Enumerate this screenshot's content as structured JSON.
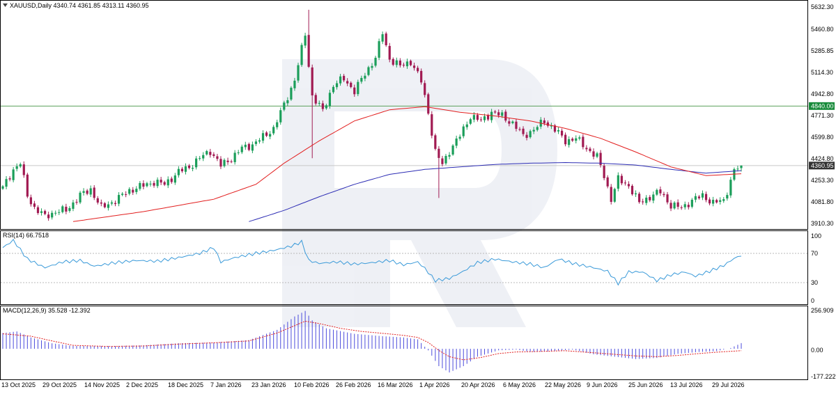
{
  "header": {
    "title": "XAUUSD,Daily  4340.74 4361.85 4313.11 4360.95",
    "collapse_icon": "triangle-down-icon"
  },
  "watermark": {
    "icon": "r-logo-watermark"
  },
  "colors": {
    "bull": "#1b9e5a",
    "bear": "#a11a52",
    "ma_fast": "#e21e1e",
    "ma_slow": "#2c2cb4",
    "level_line": "#5aa05a",
    "level_label_bg": "#178a3a",
    "price_label_bg": "#333333",
    "rsi_line": "#3a9ad9",
    "macd_hist": "#4b4bdc",
    "macd_signal": "#e21e1e",
    "grid": "#b8b8b8"
  },
  "price_panel": {
    "y_ticks": [
      "5632.30",
      "5460.80",
      "5285.85",
      "5114.30",
      "4942.80",
      "4771.30",
      "4599.80",
      "4424.80",
      "4253.30",
      "4081.80",
      "3910.30"
    ],
    "level_label": "4840.00",
    "last_price_label": "4360.95"
  },
  "rsi_panel": {
    "title": "RSI(14) 66.7518",
    "y_ticks": [
      "100",
      "70",
      "30",
      "0"
    ]
  },
  "macd_panel": {
    "title": "MACD(12,26,9) 35.528 -12.392",
    "y_ticks": [
      "256.909",
      "0.00",
      "-177.222"
    ]
  },
  "x_axis": {
    "labels": [
      "13 Oct 2025",
      "29 Oct 2025",
      "14 Nov 2025",
      "2 Dec 2025",
      "18 Dec 2025",
      "7 Jan 2026",
      "23 Jan 2026",
      "10 Feb 2026",
      "26 Feb 2026",
      "16 Mar 2026",
      "1 Apr 2026",
      "20 Apr 2026",
      "6 May 2026",
      "22 May 2026",
      "9 Jun 2026",
      "25 Jun 2026",
      "13 Jul 2026",
      "29 Jul 2026"
    ]
  },
  "chart_data": {
    "type": "candlestick",
    "symbol": "XAUUSD",
    "timeframe": "Daily",
    "last_ohlc": {
      "open": 4340.74,
      "high": 4361.85,
      "low": 4313.11,
      "close": 4360.95
    },
    "horizontal_level": 4840.0,
    "price_ylim": [
      3850,
      5660
    ],
    "close_anchors": [
      [
        0,
        4180
      ],
      [
        3,
        4330
      ],
      [
        5,
        4380
      ],
      [
        7,
        4120
      ],
      [
        9,
        4020
      ],
      [
        12,
        3950
      ],
      [
        15,
        3990
      ],
      [
        18,
        4000
      ],
      [
        22,
        4120
      ],
      [
        25,
        4170
      ],
      [
        28,
        4020
      ],
      [
        32,
        4080
      ],
      [
        36,
        4160
      ],
      [
        40,
        4200
      ],
      [
        43,
        4230
      ],
      [
        46,
        4210
      ],
      [
        50,
        4310
      ],
      [
        53,
        4350
      ],
      [
        56,
        4420
      ],
      [
        59,
        4480
      ],
      [
        62,
        4360
      ],
      [
        65,
        4420
      ],
      [
        68,
        4500
      ],
      [
        71,
        4530
      ],
      [
        74,
        4590
      ],
      [
        77,
        4660
      ],
      [
        80,
        4850
      ],
      [
        83,
        5050
      ],
      [
        86,
        5420
      ],
      [
        88,
        4920
      ],
      [
        91,
        4800
      ],
      [
        94,
        5010
      ],
      [
        97,
        5060
      ],
      [
        100,
        4960
      ],
      [
        103,
        5100
      ],
      [
        106,
        5230
      ],
      [
        108,
        5430
      ],
      [
        110,
        5220
      ],
      [
        113,
        5160
      ],
      [
        116,
        5200
      ],
      [
        119,
        5040
      ],
      [
        121,
        4790
      ],
      [
        123,
        4470
      ],
      [
        125,
        4370
      ],
      [
        127,
        4480
      ],
      [
        130,
        4600
      ],
      [
        133,
        4760
      ],
      [
        136,
        4720
      ],
      [
        139,
        4790
      ],
      [
        142,
        4760
      ],
      [
        145,
        4700
      ],
      [
        148,
        4600
      ],
      [
        151,
        4650
      ],
      [
        154,
        4720
      ],
      [
        157,
        4650
      ],
      [
        160,
        4560
      ],
      [
        163,
        4580
      ],
      [
        166,
        4500
      ],
      [
        169,
        4430
      ],
      [
        171,
        4280
      ],
      [
        173,
        4090
      ],
      [
        175,
        4250
      ],
      [
        178,
        4200
      ],
      [
        181,
        4060
      ],
      [
        184,
        4110
      ],
      [
        187,
        4150
      ],
      [
        190,
        4040
      ],
      [
        193,
        4020
      ],
      [
        196,
        4080
      ],
      [
        199,
        4120
      ],
      [
        202,
        4060
      ],
      [
        205,
        4080
      ],
      [
        208,
        4320
      ],
      [
        210,
        4361
      ]
    ],
    "ma_fast_anchors": [
      [
        20,
        3910
      ],
      [
        40,
        3990
      ],
      [
        60,
        4090
      ],
      [
        72,
        4210
      ],
      [
        80,
        4380
      ],
      [
        90,
        4560
      ],
      [
        100,
        4720
      ],
      [
        110,
        4810
      ],
      [
        120,
        4835
      ],
      [
        130,
        4790
      ],
      [
        140,
        4760
      ],
      [
        150,
        4720
      ],
      [
        160,
        4660
      ],
      [
        170,
        4580
      ],
      [
        180,
        4470
      ],
      [
        190,
        4350
      ],
      [
        200,
        4280
      ],
      [
        210,
        4295
      ]
    ],
    "ma_slow_anchors": [
      [
        70,
        3910
      ],
      [
        80,
        4000
      ],
      [
        90,
        4110
      ],
      [
        100,
        4210
      ],
      [
        110,
        4290
      ],
      [
        120,
        4330
      ],
      [
        130,
        4350
      ],
      [
        140,
        4370
      ],
      [
        150,
        4380
      ],
      [
        160,
        4385
      ],
      [
        170,
        4380
      ],
      [
        180,
        4365
      ],
      [
        190,
        4330
      ],
      [
        200,
        4300
      ],
      [
        210,
        4320
      ]
    ],
    "rsi_anchors": [
      [
        0,
        78
      ],
      [
        3,
        88
      ],
      [
        7,
        62
      ],
      [
        12,
        50
      ],
      [
        17,
        58
      ],
      [
        22,
        60
      ],
      [
        26,
        52
      ],
      [
        32,
        57
      ],
      [
        38,
        60
      ],
      [
        44,
        59
      ],
      [
        50,
        64
      ],
      [
        56,
        70
      ],
      [
        60,
        78
      ],
      [
        62,
        58
      ],
      [
        66,
        64
      ],
      [
        72,
        70
      ],
      [
        77,
        74
      ],
      [
        82,
        80
      ],
      [
        85,
        86
      ],
      [
        87,
        60
      ],
      [
        90,
        56
      ],
      [
        95,
        58
      ],
      [
        100,
        55
      ],
      [
        105,
        57
      ],
      [
        110,
        60
      ],
      [
        114,
        54
      ],
      [
        118,
        58
      ],
      [
        120,
        49
      ],
      [
        123,
        32
      ],
      [
        127,
        35
      ],
      [
        131,
        45
      ],
      [
        135,
        57
      ],
      [
        140,
        62
      ],
      [
        145,
        58
      ],
      [
        150,
        55
      ],
      [
        154,
        50
      ],
      [
        158,
        62
      ],
      [
        163,
        55
      ],
      [
        168,
        50
      ],
      [
        172,
        45
      ],
      [
        175,
        28
      ],
      [
        178,
        44
      ],
      [
        182,
        44
      ],
      [
        186,
        32
      ],
      [
        190,
        40
      ],
      [
        194,
        44
      ],
      [
        197,
        38
      ],
      [
        201,
        45
      ],
      [
        205,
        53
      ],
      [
        208,
        63
      ],
      [
        210,
        67
      ]
    ],
    "macd_hist_anchors": [
      [
        0,
        100
      ],
      [
        4,
        110
      ],
      [
        8,
        72
      ],
      [
        14,
        35
      ],
      [
        20,
        18
      ],
      [
        30,
        17
      ],
      [
        40,
        22
      ],
      [
        50,
        35
      ],
      [
        60,
        40
      ],
      [
        70,
        55
      ],
      [
        78,
        120
      ],
      [
        83,
        205
      ],
      [
        86,
        240
      ],
      [
        88,
        180
      ],
      [
        92,
        130
      ],
      [
        100,
        95
      ],
      [
        108,
        80
      ],
      [
        114,
        72
      ],
      [
        118,
        60
      ],
      [
        121,
        -10
      ],
      [
        124,
        -110
      ],
      [
        127,
        -150
      ],
      [
        131,
        -110
      ],
      [
        135,
        -50
      ],
      [
        141,
        -10
      ],
      [
        146,
        -5
      ],
      [
        150,
        -20
      ],
      [
        156,
        -15
      ],
      [
        162,
        -5
      ],
      [
        168,
        -35
      ],
      [
        174,
        -50
      ],
      [
        180,
        -65
      ],
      [
        186,
        -58
      ],
      [
        192,
        -32
      ],
      [
        198,
        -20
      ],
      [
        203,
        -15
      ],
      [
        207,
        5
      ],
      [
        210,
        36
      ]
    ],
    "macd_signal_anchors": [
      [
        0,
        95
      ],
      [
        8,
        80
      ],
      [
        14,
        50
      ],
      [
        20,
        22
      ],
      [
        30,
        15
      ],
      [
        40,
        18
      ],
      [
        50,
        30
      ],
      [
        60,
        38
      ],
      [
        70,
        50
      ],
      [
        78,
        100
      ],
      [
        86,
        175
      ],
      [
        90,
        160
      ],
      [
        96,
        130
      ],
      [
        102,
        110
      ],
      [
        108,
        98
      ],
      [
        114,
        85
      ],
      [
        118,
        72
      ],
      [
        121,
        40
      ],
      [
        124,
        -10
      ],
      [
        127,
        -50
      ],
      [
        131,
        -70
      ],
      [
        136,
        -55
      ],
      [
        141,
        -30
      ],
      [
        146,
        -20
      ],
      [
        151,
        -18
      ],
      [
        160,
        -12
      ],
      [
        168,
        -25
      ],
      [
        174,
        -35
      ],
      [
        180,
        -45
      ],
      [
        186,
        -50
      ],
      [
        192,
        -42
      ],
      [
        198,
        -30
      ],
      [
        204,
        -20
      ],
      [
        210,
        -12
      ]
    ],
    "rsi_ylim": [
      0,
      100
    ],
    "macd_ylim": [
      -185,
      265
    ]
  }
}
